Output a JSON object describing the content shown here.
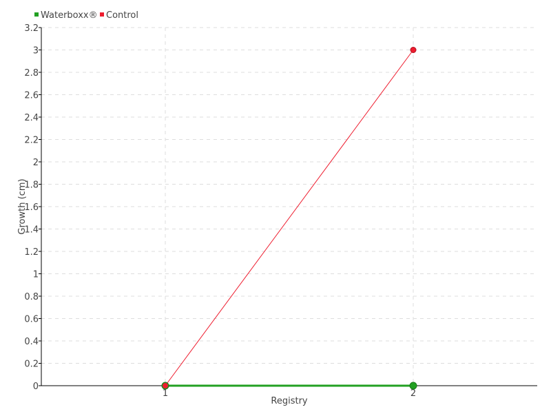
{
  "chart_data": {
    "type": "line",
    "xlabel": "Registry",
    "ylabel": "Growth (cm)",
    "x": [
      1,
      2
    ],
    "xlim": [
      0.5,
      2.5
    ],
    "ylim": [
      0,
      3.2
    ],
    "yticks": [
      0,
      0.2,
      0.4,
      0.6,
      0.8,
      1,
      1.2,
      1.4,
      1.6,
      1.8,
      2,
      2.2,
      2.4,
      2.6,
      2.8,
      3,
      3.2
    ],
    "xticks": [
      1,
      2
    ],
    "grid": true,
    "legend_position": "top-left",
    "series": [
      {
        "name": "Waterboxx®",
        "values": [
          0,
          0
        ],
        "color": "#22a022"
      },
      {
        "name": "Control",
        "values": [
          0,
          3
        ],
        "color": "#ee1c2e"
      }
    ]
  }
}
